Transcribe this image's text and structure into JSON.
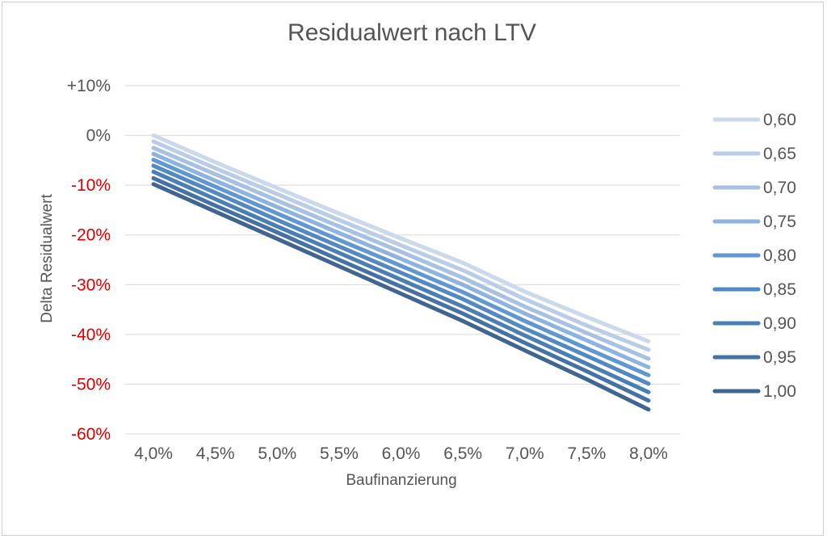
{
  "chart_data": {
    "type": "line",
    "title": "Residualwert nach LTV",
    "xlabel": "Baufinanzierung",
    "ylabel": "Delta Residualwert",
    "x": [
      "4,0%",
      "4,5%",
      "5,0%",
      "5,5%",
      "6,0%",
      "6,5%",
      "7,0%",
      "7,5%",
      "8,0%"
    ],
    "x_values": [
      4.0,
      4.5,
      5.0,
      5.5,
      6.0,
      6.5,
      7.0,
      7.5,
      8.0
    ],
    "ylim": [
      -60,
      10
    ],
    "y_ticks": [
      {
        "value": 10,
        "label": "+10%",
        "color": "#555555"
      },
      {
        "value": 0,
        "label": "0%",
        "color": "#555555"
      },
      {
        "value": -10,
        "label": "-10%",
        "color": "#e00000"
      },
      {
        "value": -20,
        "label": "-20%",
        "color": "#e00000"
      },
      {
        "value": -30,
        "label": "-30%",
        "color": "#e00000"
      },
      {
        "value": -40,
        "label": "-40%",
        "color": "#e00000"
      },
      {
        "value": -50,
        "label": "-50%",
        "color": "#e00000"
      },
      {
        "value": -60,
        "label": "-60%",
        "color": "#e00000"
      }
    ],
    "grid": true,
    "legend_position": "right",
    "series": [
      {
        "name": "0,60",
        "color": "#cbd9ec",
        "values": [
          0.0,
          -5.4,
          -10.6,
          -15.7,
          -20.7,
          -25.6,
          -31.4,
          -36.5,
          -41.4
        ]
      },
      {
        "name": "0,65",
        "color": "#b9cde6",
        "values": [
          -1.2,
          -6.6,
          -11.8,
          -17.0,
          -22.1,
          -27.1,
          -32.9,
          -38.2,
          -43.1
        ]
      },
      {
        "name": "0,70",
        "color": "#a6c1e2",
        "values": [
          -2.5,
          -7.8,
          -13.1,
          -18.3,
          -23.4,
          -28.6,
          -34.4,
          -39.7,
          -44.9
        ]
      },
      {
        "name": "0,75",
        "color": "#8db3e1",
        "values": [
          -3.7,
          -9.1,
          -14.4,
          -19.6,
          -24.8,
          -30.0,
          -35.8,
          -41.2,
          -46.6
        ]
      },
      {
        "name": "0,80",
        "color": "#5f97d4",
        "values": [
          -4.9,
          -10.3,
          -15.7,
          -21.0,
          -26.2,
          -31.5,
          -37.3,
          -42.8,
          -48.2
        ]
      },
      {
        "name": "0,85",
        "color": "#5288c4",
        "values": [
          -6.1,
          -11.5,
          -17.0,
          -22.3,
          -27.6,
          -32.9,
          -38.8,
          -44.3,
          -49.9
        ]
      },
      {
        "name": "0,90",
        "color": "#4a7fb5",
        "values": [
          -7.3,
          -12.8,
          -18.3,
          -23.6,
          -29.0,
          -34.4,
          -40.2,
          -45.9,
          -51.6
        ]
      },
      {
        "name": "0,95",
        "color": "#4472a6",
        "values": [
          -8.6,
          -14.1,
          -19.5,
          -25.0,
          -30.4,
          -35.8,
          -41.7,
          -47.4,
          -53.3
        ]
      },
      {
        "name": "1,00",
        "color": "#3f6590",
        "values": [
          -9.8,
          -15.3,
          -20.8,
          -26.3,
          -31.8,
          -37.3,
          -43.2,
          -49.0,
          -55.1
        ]
      }
    ]
  }
}
